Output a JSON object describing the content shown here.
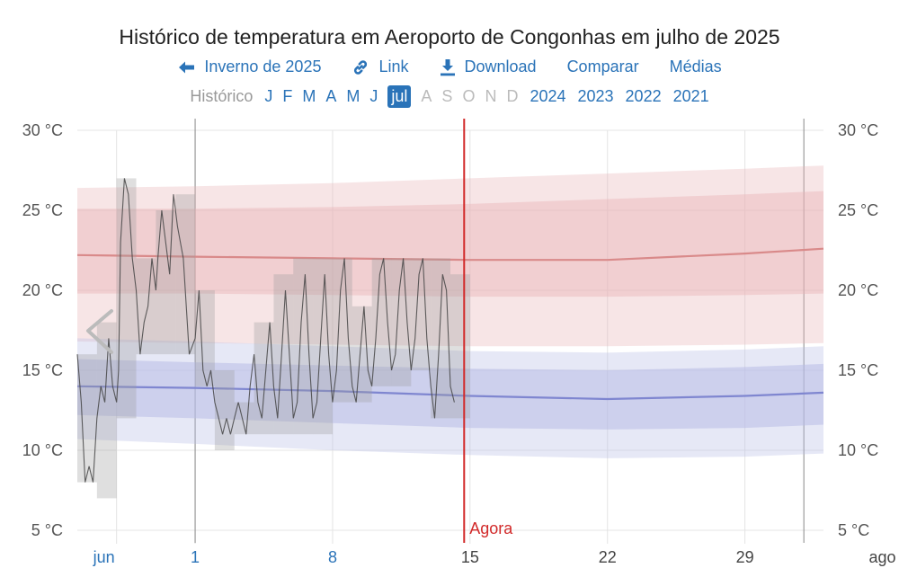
{
  "header": {
    "title": "Histórico de temperatura em Aeroporto de Congonhas em julho de 2025",
    "links": [
      {
        "id": "prev",
        "icon": "arrow-left-icon",
        "label": "Inverno de 2025"
      },
      {
        "id": "link",
        "icon": "link-icon",
        "label": "Link"
      },
      {
        "id": "download",
        "icon": "download-icon",
        "label": "Download"
      },
      {
        "id": "compare",
        "icon": "",
        "label": "Comparar"
      },
      {
        "id": "averages",
        "icon": "",
        "label": "Médias"
      }
    ],
    "history_label": "Histórico",
    "months": [
      {
        "label": "J",
        "state": "link"
      },
      {
        "label": "F",
        "state": "link"
      },
      {
        "label": "M",
        "state": "link"
      },
      {
        "label": "A",
        "state": "link"
      },
      {
        "label": "M",
        "state": "link"
      },
      {
        "label": "J",
        "state": "link"
      },
      {
        "label": "jul",
        "state": "selected"
      },
      {
        "label": "A",
        "state": "disabled"
      },
      {
        "label": "S",
        "state": "disabled"
      },
      {
        "label": "O",
        "state": "disabled"
      },
      {
        "label": "N",
        "state": "disabled"
      },
      {
        "label": "D",
        "state": "disabled"
      }
    ],
    "years": [
      "2024",
      "2023",
      "2022",
      "2021"
    ]
  },
  "colors": {
    "link": "#2a73b8",
    "now_line": "#d22a2a",
    "high_band": "#e8b4b8",
    "low_band": "#b8bce6",
    "high_mean": "#d98a8a",
    "low_mean": "#7f86d0",
    "observed": "#444444",
    "observed_band": "#9a9a9a"
  },
  "chart_data": {
    "type": "line",
    "ylim": [
      5,
      30
    ],
    "xlim": [
      -6,
      32
    ],
    "y_ticks": [
      5,
      10,
      15,
      20,
      25,
      30
    ],
    "y_tick_unit": "°C",
    "x_ticks": [
      {
        "x": -4,
        "label": "jun",
        "style": "month"
      },
      {
        "x": 0,
        "label": "1",
        "style": "link"
      },
      {
        "x": 7,
        "label": "8",
        "style": "link"
      },
      {
        "x": 14,
        "label": "15",
        "style": "plain"
      },
      {
        "x": 21,
        "label": "22",
        "style": "plain"
      },
      {
        "x": 28,
        "label": "29",
        "style": "plain"
      },
      {
        "x": 35,
        "label": "ago",
        "style": "plain"
      }
    ],
    "vertical_marks": [
      0,
      31
    ],
    "now": {
      "x": 13.7,
      "label": "Agora"
    },
    "climatology": {
      "x": [
        -6,
        0,
        7,
        14,
        21,
        28,
        32
      ],
      "high_p10_p90": {
        "lower": [
          16.8,
          16.7,
          16.6,
          16.5,
          16.5,
          16.6,
          16.7
        ],
        "upper": [
          26.4,
          26.5,
          26.7,
          27.0,
          27.3,
          27.6,
          27.8
        ]
      },
      "high_p25_p75": {
        "lower": [
          19.8,
          19.8,
          19.7,
          19.6,
          19.6,
          19.7,
          19.8
        ],
        "upper": [
          25.1,
          25.1,
          25.2,
          25.4,
          25.7,
          26.0,
          26.2
        ]
      },
      "high_mean": [
        22.2,
        22.1,
        22.0,
        21.9,
        21.9,
        22.3,
        22.6
      ],
      "low_p10_p90": {
        "lower": [
          10.7,
          10.4,
          10.0,
          9.7,
          9.5,
          9.6,
          9.8
        ],
        "upper": [
          17.0,
          16.8,
          16.5,
          16.2,
          16.1,
          16.3,
          16.5
        ]
      },
      "low_p25_p75": {
        "lower": [
          12.2,
          12.0,
          11.7,
          11.4,
          11.3,
          11.4,
          11.6
        ],
        "upper": [
          15.7,
          15.5,
          15.3,
          15.1,
          15.0,
          15.2,
          15.4
        ]
      },
      "low_mean": [
        14.0,
        13.9,
        13.7,
        13.4,
        13.2,
        13.4,
        13.6
      ]
    },
    "observed_daily": [
      {
        "x": -6,
        "low": 8,
        "high": 16
      },
      {
        "x": -5,
        "low": 7,
        "high": 18
      },
      {
        "x": -4,
        "low": 12,
        "high": 27
      },
      {
        "x": -3,
        "low": 16,
        "high": 22
      },
      {
        "x": -2,
        "low": 16,
        "high": 25
      },
      {
        "x": -1,
        "low": 16,
        "high": 26
      },
      {
        "x": 0,
        "low": 14,
        "high": 20
      },
      {
        "x": 1,
        "low": 10,
        "high": 15
      },
      {
        "x": 2,
        "low": 11,
        "high": 13
      },
      {
        "x": 3,
        "low": 11,
        "high": 18
      },
      {
        "x": 4,
        "low": 11,
        "high": 21
      },
      {
        "x": 5,
        "low": 11,
        "high": 22
      },
      {
        "x": 6,
        "low": 11,
        "high": 22
      },
      {
        "x": 7,
        "low": 13,
        "high": 22
      },
      {
        "x": 8,
        "low": 13,
        "high": 19
      },
      {
        "x": 9,
        "low": 14,
        "high": 22
      },
      {
        "x": 10,
        "low": 14,
        "high": 22
      },
      {
        "x": 11,
        "low": 15,
        "high": 22
      },
      {
        "x": 12,
        "low": 12,
        "high": 22
      },
      {
        "x": 13,
        "low": 12,
        "high": 21
      }
    ],
    "observed_hourly": [
      [
        -6,
        16
      ],
      [
        -5.8,
        13
      ],
      [
        -5.6,
        8
      ],
      [
        -5.4,
        9
      ],
      [
        -5.2,
        8
      ],
      [
        -5.0,
        12
      ],
      [
        -4.8,
        14
      ],
      [
        -4.6,
        13
      ],
      [
        -4.4,
        17
      ],
      [
        -4.2,
        14
      ],
      [
        -4.0,
        13
      ],
      [
        -3.9,
        15
      ],
      [
        -3.8,
        23
      ],
      [
        -3.6,
        27
      ],
      [
        -3.4,
        26
      ],
      [
        -3.2,
        22
      ],
      [
        -3.0,
        20
      ],
      [
        -2.8,
        16
      ],
      [
        -2.6,
        18
      ],
      [
        -2.4,
        19
      ],
      [
        -2.2,
        22
      ],
      [
        -2.0,
        20
      ],
      [
        -1.9,
        22
      ],
      [
        -1.7,
        25
      ],
      [
        -1.5,
        23
      ],
      [
        -1.3,
        21
      ],
      [
        -1.1,
        26
      ],
      [
        -0.9,
        24
      ],
      [
        -0.6,
        22
      ],
      [
        -0.3,
        16
      ],
      [
        0.0,
        17
      ],
      [
        0.2,
        20
      ],
      [
        0.4,
        15
      ],
      [
        0.6,
        14
      ],
      [
        0.8,
        15
      ],
      [
        1.0,
        13
      ],
      [
        1.2,
        12
      ],
      [
        1.4,
        11
      ],
      [
        1.6,
        12
      ],
      [
        1.8,
        11
      ],
      [
        2.0,
        12
      ],
      [
        2.2,
        13
      ],
      [
        2.4,
        12
      ],
      [
        2.6,
        11
      ],
      [
        2.8,
        14
      ],
      [
        3.0,
        16
      ],
      [
        3.2,
        13
      ],
      [
        3.4,
        12
      ],
      [
        3.6,
        15
      ],
      [
        3.8,
        18
      ],
      [
        4.0,
        14
      ],
      [
        4.2,
        12
      ],
      [
        4.4,
        16
      ],
      [
        4.6,
        20
      ],
      [
        4.8,
        16
      ],
      [
        5.0,
        12
      ],
      [
        5.2,
        13
      ],
      [
        5.4,
        18
      ],
      [
        5.6,
        21
      ],
      [
        5.8,
        16
      ],
      [
        6.0,
        12
      ],
      [
        6.2,
        13
      ],
      [
        6.4,
        17
      ],
      [
        6.6,
        21
      ],
      [
        6.8,
        16
      ],
      [
        7.0,
        13
      ],
      [
        7.2,
        15
      ],
      [
        7.4,
        20
      ],
      [
        7.6,
        22
      ],
      [
        7.8,
        17
      ],
      [
        8.0,
        14
      ],
      [
        8.2,
        13
      ],
      [
        8.4,
        16
      ],
      [
        8.6,
        19
      ],
      [
        8.8,
        15
      ],
      [
        9.0,
        14
      ],
      [
        9.2,
        17
      ],
      [
        9.4,
        21
      ],
      [
        9.6,
        22
      ],
      [
        9.8,
        18
      ],
      [
        10.0,
        15
      ],
      [
        10.2,
        16
      ],
      [
        10.4,
        20
      ],
      [
        10.6,
        22
      ],
      [
        10.8,
        18
      ],
      [
        11.0,
        15
      ],
      [
        11.2,
        17
      ],
      [
        11.4,
        21
      ],
      [
        11.6,
        22
      ],
      [
        11.8,
        17
      ],
      [
        12.0,
        14
      ],
      [
        12.2,
        12
      ],
      [
        12.4,
        16
      ],
      [
        12.6,
        21
      ],
      [
        12.8,
        20
      ],
      [
        13.0,
        14
      ],
      [
        13.2,
        13
      ]
    ]
  }
}
